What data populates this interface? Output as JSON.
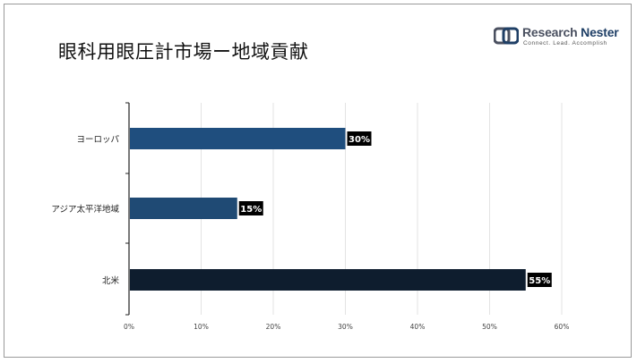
{
  "title": "眼科用眼圧計市場ー地域貢献",
  "logo": {
    "name_part1": "Research",
    "name_part2": "Nester",
    "tagline": "Connect. Lead. Accomplish",
    "colors": {
      "dark": "#4a5060",
      "accent": "#1f3f66"
    }
  },
  "chart_data": {
    "type": "bar",
    "orientation": "horizontal",
    "categories": [
      "ヨーロッパ",
      "アジア太平洋地域",
      "北米"
    ],
    "values": [
      30,
      15,
      55
    ],
    "data_labels": [
      "30%",
      "15%",
      "55%"
    ],
    "bar_colors": [
      "#1f4e7e",
      "#1f4a74",
      "#0e1d2e"
    ],
    "xlim": [
      0,
      60
    ],
    "x_ticks": [
      0,
      10,
      20,
      30,
      40,
      50,
      60
    ],
    "x_tick_labels": [
      "0%",
      "10%",
      "20%",
      "30%",
      "40%",
      "50%",
      "60%"
    ],
    "grid": "vertical",
    "legend": "none"
  }
}
